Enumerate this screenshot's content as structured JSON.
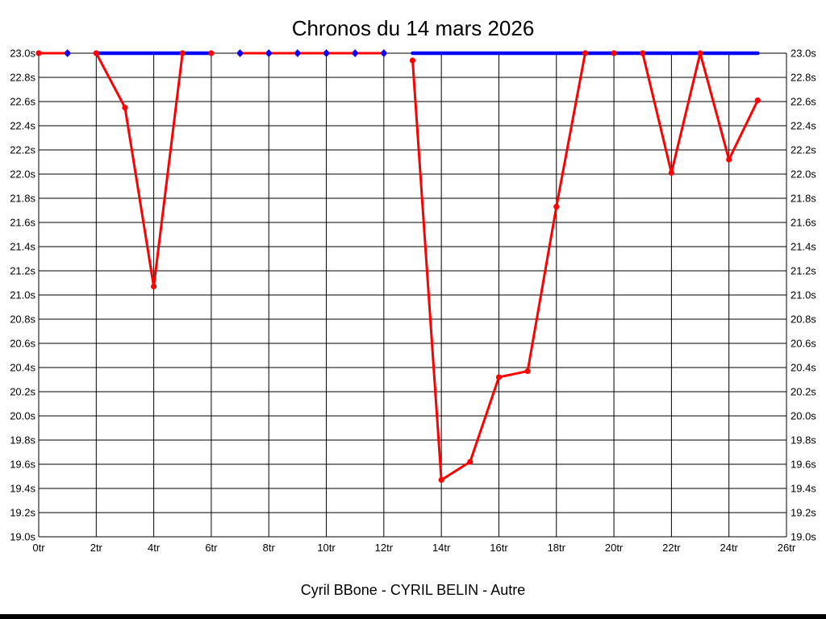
{
  "title": "Chronos du 14 mars 2026",
  "caption": "Cyril BBone - CYRIL BELIN - Autre",
  "colors": {
    "chronos_red": "#ff0000",
    "reference_blue": "#0000ff",
    "grid_black": "#000000",
    "background": "#ffffff",
    "bottom_bar": "#000000"
  },
  "chart_data": {
    "type": "line",
    "title": "Chronos du 14 mars 2026",
    "x_unit": "tr",
    "y_unit": "s",
    "xlim": [
      0,
      26
    ],
    "ylim": [
      19.0,
      23.0
    ],
    "x_tick_step": 2,
    "y_tick_step": 0.2,
    "grid": true,
    "legend": "none",
    "x_ticks": [
      "0tr",
      "2tr",
      "4tr",
      "6tr",
      "8tr",
      "10tr",
      "12tr",
      "14tr",
      "16tr",
      "18tr",
      "20tr",
      "22tr",
      "24tr",
      "26tr"
    ],
    "y_ticks": [
      "23.0s",
      "22.8s",
      "22.6s",
      "22.4s",
      "22.2s",
      "22.0s",
      "21.8s",
      "21.6s",
      "21.4s",
      "21.2s",
      "21.0s",
      "20.8s",
      "20.6s",
      "20.4s",
      "20.2s",
      "20.0s",
      "19.8s",
      "19.6s",
      "19.4s",
      "19.2s",
      "19.0s"
    ],
    "series": [
      {
        "name": "chronos",
        "color": "#ff0000",
        "marker": "circle",
        "line_width": 3,
        "segments": [
          [
            [
              0,
              23.0
            ],
            [
              1,
              23.0
            ]
          ],
          [
            [
              2,
              23.0
            ],
            [
              3,
              22.55
            ],
            [
              4,
              21.07
            ],
            [
              5,
              23.0
            ],
            [
              6,
              23.0
            ]
          ],
          [
            [
              7,
              23.0
            ],
            [
              8,
              23.0
            ],
            [
              9,
              23.0
            ],
            [
              10,
              23.0
            ],
            [
              11,
              23.0
            ],
            [
              12,
              23.0
            ]
          ],
          [
            [
              13,
              22.94
            ],
            [
              14,
              19.47
            ],
            [
              15,
              19.62
            ],
            [
              16,
              20.32
            ],
            [
              17,
              20.37
            ],
            [
              18,
              21.73
            ],
            [
              19,
              23.0
            ],
            [
              20,
              23.0
            ],
            [
              21,
              23.0
            ],
            [
              22,
              22.01
            ],
            [
              23,
              23.0
            ],
            [
              24,
              22.12
            ],
            [
              25,
              22.61
            ]
          ]
        ]
      },
      {
        "name": "reference",
        "color": "#0000ff",
        "marker": "diamond",
        "line_width": 4.5,
        "segments": [
          [
            [
              2,
              23.0
            ],
            [
              6,
              23.0
            ]
          ],
          [
            [
              13,
              23.0
            ],
            [
              25,
              23.0
            ]
          ]
        ],
        "marker_points": [
          [
            1,
            23.0
          ],
          [
            7,
            23.0
          ],
          [
            8,
            23.0
          ],
          [
            9,
            23.0
          ],
          [
            10,
            23.0
          ],
          [
            11,
            23.0
          ],
          [
            12,
            23.0
          ]
        ]
      }
    ]
  }
}
